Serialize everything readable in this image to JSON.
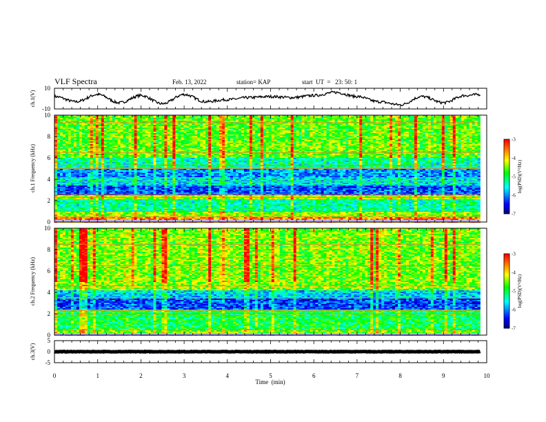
{
  "header": {
    "title": "VLF Spectra",
    "date": "Feb. 13, 2022",
    "station": "station= KAP",
    "start": "start  UT  =   23: 50: 1"
  },
  "chart_data": [
    {
      "type": "line",
      "name": "ch.1 waveform",
      "ylabel": "ch.1(V)",
      "ylim": [
        -10,
        10
      ],
      "yticks": [
        "10",
        "-10"
      ],
      "xlim": [
        0,
        10
      ],
      "x": [
        0,
        0.5,
        1,
        1.5,
        2,
        2.5,
        3,
        3.5,
        4,
        4.5,
        5,
        5.5,
        6,
        6.5,
        7,
        7.5,
        8,
        8.5,
        9,
        9.5,
        9.85
      ],
      "values": [
        2,
        -3,
        4,
        -4,
        3,
        -5,
        4,
        -3,
        -1,
        1,
        2,
        1,
        3,
        6,
        2,
        -3,
        -6,
        2,
        -4,
        3,
        4
      ],
      "color": "#000000"
    },
    {
      "type": "heatmap",
      "name": "ch.1 spectrogram",
      "ylabel": "ch.1 Frequency (kHz)",
      "ylim": [
        0,
        10
      ],
      "yticks": [
        "0",
        "2",
        "4",
        "6",
        "8",
        "10"
      ],
      "xlim": [
        0,
        9.85
      ],
      "colorbar": {
        "label": "log(PSD)(V²/Hz)",
        "ticks": [
          "-3",
          "-4",
          "-5",
          "-6",
          "-7"
        ],
        "range": [
          -7,
          -3
        ]
      },
      "band_levels": [
        {
          "f": [
            0,
            0.5
          ],
          "level": -3.6
        },
        {
          "f": [
            0.5,
            1.0
          ],
          "level": -4.4
        },
        {
          "f": [
            1.0,
            2.2
          ],
          "level": -5.3
        },
        {
          "f": [
            2.2,
            2.6
          ],
          "level": -4.3
        },
        {
          "f": [
            2.6,
            3.5
          ],
          "level": -6.3
        },
        {
          "f": [
            3.5,
            4.2
          ],
          "level": -5.6
        },
        {
          "f": [
            4.2,
            5.0
          ],
          "level": -6.0
        },
        {
          "f": [
            5.0,
            6.0
          ],
          "level": -5.3
        },
        {
          "f": [
            6.0,
            10.0
          ],
          "level": -4.6
        }
      ],
      "line_frequencies": [
        0.5,
        1.0,
        2.3,
        2.6,
        3.8,
        5.0,
        5.3,
        6.5,
        9.3
      ]
    },
    {
      "type": "heatmap",
      "name": "ch.2 spectrogram",
      "ylabel": "ch.2 Frequency (kHz)",
      "ylim": [
        0,
        10
      ],
      "yticks": [
        "0",
        "2",
        "4",
        "6",
        "8",
        "10"
      ],
      "xlim": [
        0,
        9.85
      ],
      "colorbar": {
        "label": "log(PSD)(V²/Hz)",
        "ticks": [
          "-3",
          "-4",
          "-5",
          "-6",
          "-7"
        ],
        "range": [
          -7,
          -3
        ]
      },
      "band_levels": [
        {
          "f": [
            0,
            0.6
          ],
          "level": -4.6
        },
        {
          "f": [
            0.6,
            2.5
          ],
          "level": -5.0
        },
        {
          "f": [
            2.5,
            3.4
          ],
          "level": -6.3
        },
        {
          "f": [
            3.4,
            4.2
          ],
          "level": -5.7
        },
        {
          "f": [
            4.2,
            10.0
          ],
          "level": -4.5
        }
      ],
      "line_frequencies": [
        0.5,
        2.0,
        2.3,
        3.5,
        4.6,
        6.5,
        8.5
      ]
    },
    {
      "type": "line",
      "name": "ch.3 waveform",
      "ylabel": "ch.3(V)",
      "ylim": [
        -5,
        5
      ],
      "yticks": [
        "5",
        "0",
        "-5"
      ],
      "xlim": [
        0,
        10
      ],
      "x": [
        0,
        9.85
      ],
      "values": [
        0,
        0
      ],
      "color": "#000000"
    }
  ],
  "xaxis": {
    "label": "Time  (min)",
    "ticks": [
      "0",
      "1",
      "2",
      "3",
      "4",
      "5",
      "6",
      "7",
      "8",
      "9",
      "10"
    ]
  }
}
